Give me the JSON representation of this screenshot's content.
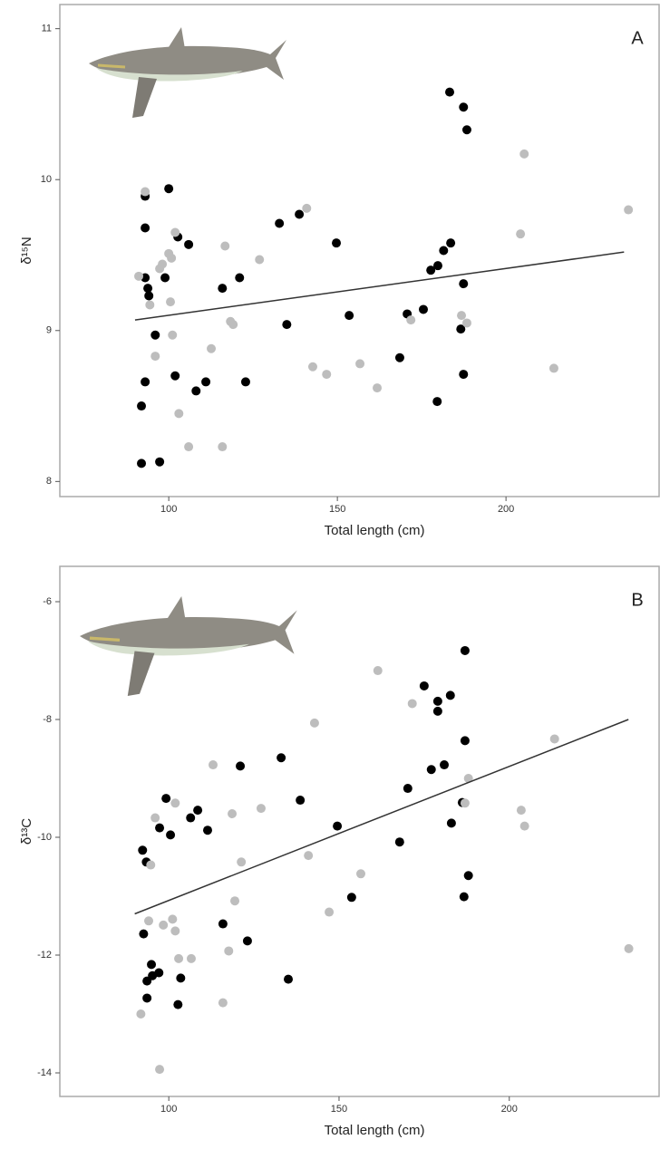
{
  "chart_data": [
    {
      "type": "scatter",
      "label": "A",
      "x_label": "Total length (cm)",
      "y_label": "δ¹⁵N",
      "xlim": [
        67.7,
        245.4
      ],
      "xticks": [
        100,
        150,
        200
      ],
      "ylim": [
        7.9,
        11.16
      ],
      "yticks": [
        8,
        9,
        10,
        11
      ],
      "series": [
        {
          "color": "#000000",
          "x": [
            91.9,
            91.9,
            93.0,
            93.0,
            93.0,
            93.8,
            94.1,
            93.0,
            96.0,
            97.3,
            98.9,
            100,
            101.9,
            102.7,
            105.9,
            108.1,
            111.0,
            115.9,
            121.0,
            122.8,
            132.8,
            135.0,
            138.7,
            149.7,
            153.5,
            168.5,
            170.7,
            175.5,
            177.7,
            179.8,
            179.6,
            181.5,
            183.6,
            183.3,
            187.4,
            188.4,
            187.4,
            186.6,
            187.4
          ],
          "values": [
            8.5,
            8.12,
            9.89,
            9.68,
            9.35,
            9.28,
            9.23,
            8.66,
            8.97,
            8.13,
            9.35,
            9.94,
            8.7,
            9.62,
            9.57,
            8.6,
            8.66,
            9.28,
            9.35,
            8.66,
            9.71,
            9.04,
            9.77,
            9.58,
            9.1,
            8.82,
            9.11,
            9.14,
            9.4,
            9.43,
            8.53,
            9.53,
            9.58,
            10.58,
            10.48,
            10.33,
            9.31,
            9.01,
            8.71
          ]
        },
        {
          "color": "#bdbdbd",
          "x": [
            91.1,
            93.0,
            94.4,
            96.0,
            97.3,
            98.1,
            100,
            100.8,
            101.9,
            100.5,
            101.1,
            103.0,
            105.9,
            112.6,
            115.9,
            116.7,
            118.3,
            119.1,
            126.9,
            140.9,
            142.7,
            146.8,
            156.7,
            161.8,
            171.8,
            186.8,
            188.4,
            204.3,
            205.4,
            214.2,
            236.3
          ],
          "values": [
            9.36,
            9.92,
            9.17,
            8.83,
            9.41,
            9.44,
            9.51,
            9.48,
            9.65,
            9.19,
            8.97,
            8.45,
            8.23,
            8.88,
            8.23,
            9.56,
            9.06,
            9.04,
            9.47,
            9.81,
            8.76,
            8.71,
            8.78,
            8.62,
            9.07,
            9.1,
            9.05,
            9.64,
            10.17,
            8.75,
            9.8
          ]
        }
      ],
      "trend": {
        "x": [
          90,
          235
        ],
        "y": [
          9.07,
          9.52
        ]
      }
    },
    {
      "type": "scatter",
      "label": "B",
      "x_label": "Total length (cm)",
      "y_label": "δ¹³C",
      "xlim": [
        68,
        244
      ],
      "xticks": [
        100,
        150,
        200
      ],
      "ylim": [
        -14.4,
        -5.4
      ],
      "yticks": [
        -14,
        -12,
        -10,
        -8,
        -6
      ],
      "series": [
        {
          "color": "#000000",
          "x": [
            92.3,
            93.4,
            92.6,
            93.6,
            93.6,
            94.9,
            95.2,
            97.1,
            97.3,
            99.2,
            100.5,
            103.5,
            102.7,
            106.4,
            108.5,
            111.4,
            115.9,
            121.0,
            123.1,
            133.0,
            135.1,
            138.6,
            149.5,
            153.7,
            167.8,
            170.2,
            175.0,
            177.1,
            179.0,
            179.0,
            180.9,
            182.7,
            183.0,
            187.0,
            187.0,
            186.2,
            188.0,
            186.7
          ],
          "values": [
            -10.22,
            -10.42,
            -11.64,
            -12.44,
            -12.73,
            -12.16,
            -12.35,
            -12.3,
            -9.84,
            -9.34,
            -9.96,
            -12.39,
            -12.84,
            -9.67,
            -9.54,
            -9.88,
            -11.47,
            -8.79,
            -11.76,
            -8.65,
            -12.41,
            -9.37,
            -9.81,
            -11.02,
            -10.08,
            -9.17,
            -7.43,
            -8.85,
            -7.69,
            -7.86,
            -8.77,
            -7.59,
            -9.76,
            -6.83,
            -8.36,
            -9.41,
            -10.65,
            -11.01
          ]
        },
        {
          "color": "#bdbdbd",
          "x": [
            91.8,
            94.7,
            96.0,
            98.4,
            101.1,
            101.9,
            102.9,
            101.9,
            106.6,
            113.0,
            115.9,
            117.6,
            118.6,
            119.4,
            121.3,
            127.1,
            141.0,
            142.8,
            147.1,
            156.4,
            161.4,
            171.5,
            187.0,
            188.0,
            203.5,
            204.5,
            213.3,
            235.1,
            97.3,
            94.1
          ],
          "values": [
            -13.0,
            -10.47,
            -9.67,
            -11.49,
            -11.39,
            -11.59,
            -12.06,
            -9.42,
            -12.06,
            -8.77,
            -12.81,
            -11.93,
            -9.6,
            -11.08,
            -10.42,
            -9.51,
            -10.31,
            -8.06,
            -11.27,
            -10.62,
            -7.17,
            -7.73,
            -9.42,
            -9.0,
            -9.54,
            -9.81,
            -8.33,
            -11.89,
            -13.94,
            -11.42
          ]
        }
      ],
      "trend": {
        "x": [
          90,
          235
        ],
        "y": [
          -11.3,
          -8.0
        ]
      }
    }
  ]
}
